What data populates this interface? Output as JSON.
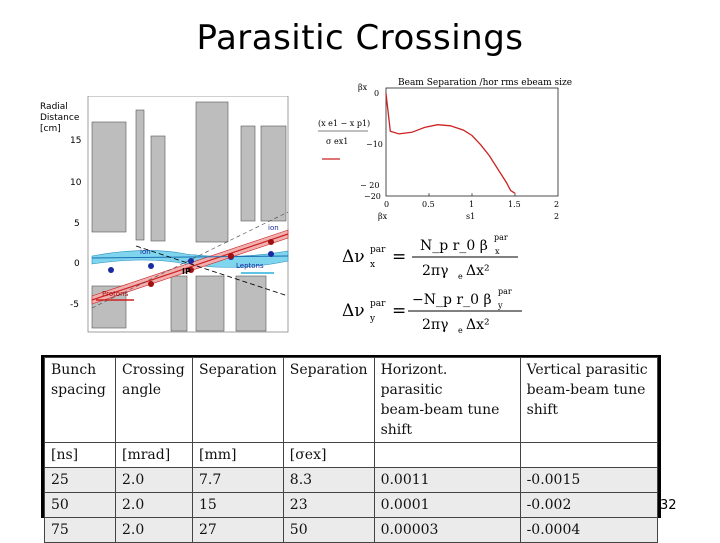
{
  "slide": {
    "title": "Parasitic Crossings",
    "page_number": "32"
  },
  "diagram": {
    "ylabel_lines": [
      "Radial",
      "Distance",
      "[cm]"
    ],
    "yticks": [
      "15",
      "10",
      "5",
      "0",
      "-5"
    ],
    "label_ip": "IP",
    "label_ion": "ion",
    "label_ion2": "ion",
    "label_leptons": "Leptons",
    "label_protons": "Protons"
  },
  "plot": {
    "title": "Beam Separation /hor rms ebeam size",
    "ylabel_expr": "(x e1 − x p1)",
    "ylabel_denom": "σ ex1",
    "yticks": [
      "0",
      "−10",
      "− 20",
      "−20"
    ],
    "xticks": [
      "0",
      "0.5",
      "1",
      "1.5",
      "2"
    ],
    "x_axis_sym": "s1",
    "x_axis_end": "2",
    "beta_sym": "βx"
  },
  "chart_data": {
    "type": "line",
    "title": "Beam Separation /hor rms ebeam size",
    "xlim": [
      0,
      2
    ],
    "ylim": [
      -20,
      0
    ],
    "series": [
      {
        "x": [
          0.0,
          0.05,
          0.15,
          0.3,
          0.45,
          0.6,
          0.75,
          0.9,
          1.0,
          1.1,
          1.2,
          1.3,
          1.4,
          1.45,
          1.5
        ],
        "y": [
          -1.0,
          -8.0,
          -8.5,
          -8.2,
          -7.3,
          -6.8,
          -7.0,
          -7.8,
          -8.8,
          -10.5,
          -12.5,
          -15.0,
          -17.5,
          -19.0,
          -19.5
        ]
      }
    ],
    "color": "#cc2222",
    "grid": false
  },
  "formulas": {
    "fx_lhs": "Δν",
    "fx_sup": "par",
    "fx_sub": "x",
    "fx_num": "N_p r_0 β",
    "fx_num_sub": "x",
    "fx_num_sup": "par",
    "fx_den": "2πγ",
    "fx_den_sub": "e",
    "fx_den2": "Δx²",
    "fy_lhs": "Δν",
    "fy_sup": "par",
    "fy_sub": "y",
    "fy_num": "−N_p r_0 β",
    "fy_num_sub": "y",
    "fy_num_sup": "par",
    "fy_den": "2πγ",
    "fy_den_sub": "e",
    "fy_den2": "Δx²"
  },
  "table": {
    "headers": [
      [
        "Bunch",
        "spacing"
      ],
      [
        "Crossing",
        "angle"
      ],
      [
        "Separation"
      ],
      [
        "Separation"
      ],
      [
        "Horizont.  parasitic",
        "beam-beam      tune",
        "shift"
      ],
      [
        "Vertical    parasitic",
        "beam-beam      tune",
        "shift"
      ]
    ],
    "units": [
      "[ns]",
      "[mrad]",
      "[mm]",
      "[σex]",
      "",
      ""
    ],
    "rows": [
      [
        "25",
        "2.0",
        "7.7",
        "8.3",
        "0.0011",
        "-0.0015"
      ],
      [
        "50",
        "2.0",
        "15",
        "23",
        "0.0001",
        "-0.002"
      ],
      [
        "75",
        "2.0",
        "27",
        "50",
        "0.00003",
        "-0.0004"
      ]
    ]
  }
}
